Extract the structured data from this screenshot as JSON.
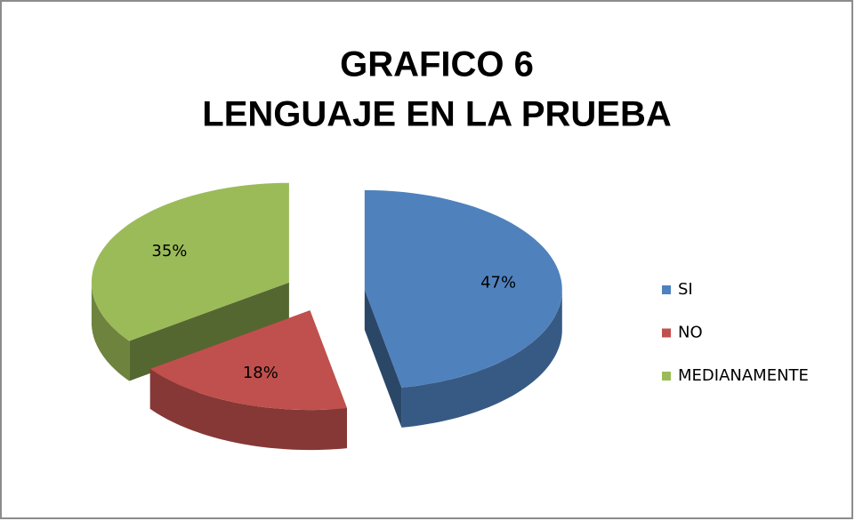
{
  "chart_data": {
    "type": "pie",
    "title": [
      "GRAFICO 6",
      "LENGUAJE EN LA PRUEBA"
    ],
    "categories": [
      "SI",
      "NO",
      "MEDIANAMENTE"
    ],
    "values": [
      47,
      18,
      35
    ],
    "value_labels": [
      "47%",
      "18%",
      "35%"
    ],
    "colors": [
      "#4f81bd",
      "#c0504d",
      "#9bbb59"
    ],
    "legend": "right"
  }
}
